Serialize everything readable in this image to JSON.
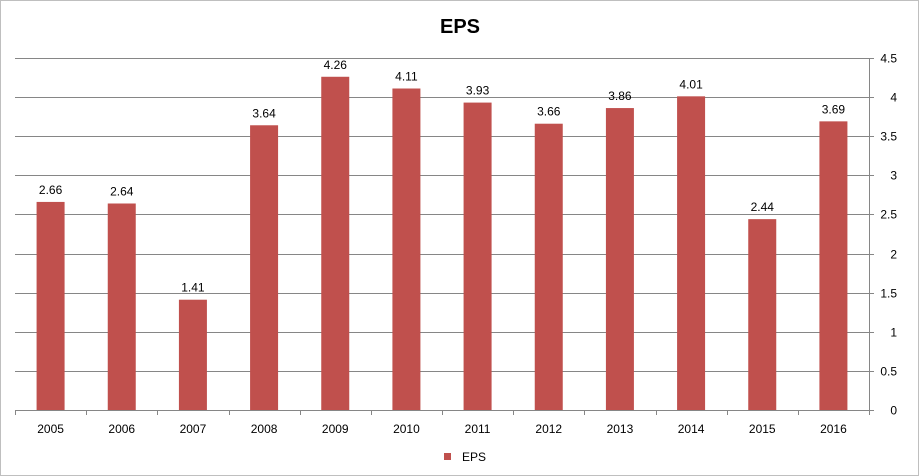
{
  "chart_data": {
    "type": "bar",
    "title": "EPS",
    "categories": [
      "2005",
      "2006",
      "2007",
      "2008",
      "2009",
      "2010",
      "2011",
      "2012",
      "2013",
      "2014",
      "2015",
      "2016"
    ],
    "series": [
      {
        "name": "EPS",
        "values": [
          2.66,
          2.64,
          1.41,
          3.64,
          4.26,
          4.11,
          3.93,
          3.66,
          3.86,
          4.01,
          2.44,
          3.69
        ],
        "color": "#c0504d"
      }
    ],
    "data_labels": [
      "2.66",
      "2.64",
      "1.41",
      "3.64",
      "4.26",
      "4.11",
      "3.93",
      "3.66",
      "3.86",
      "4.01",
      "2.44",
      "3.69"
    ],
    "y_ticks": [
      "0",
      "0.5",
      "1",
      "1.5",
      "2",
      "2.5",
      "3",
      "3.5",
      "4",
      "4.5"
    ],
    "ylim": [
      0,
      4.5
    ],
    "y_axis_side": "right",
    "grid": true,
    "gridline_color": "#868686",
    "legend_position": "bottom"
  }
}
